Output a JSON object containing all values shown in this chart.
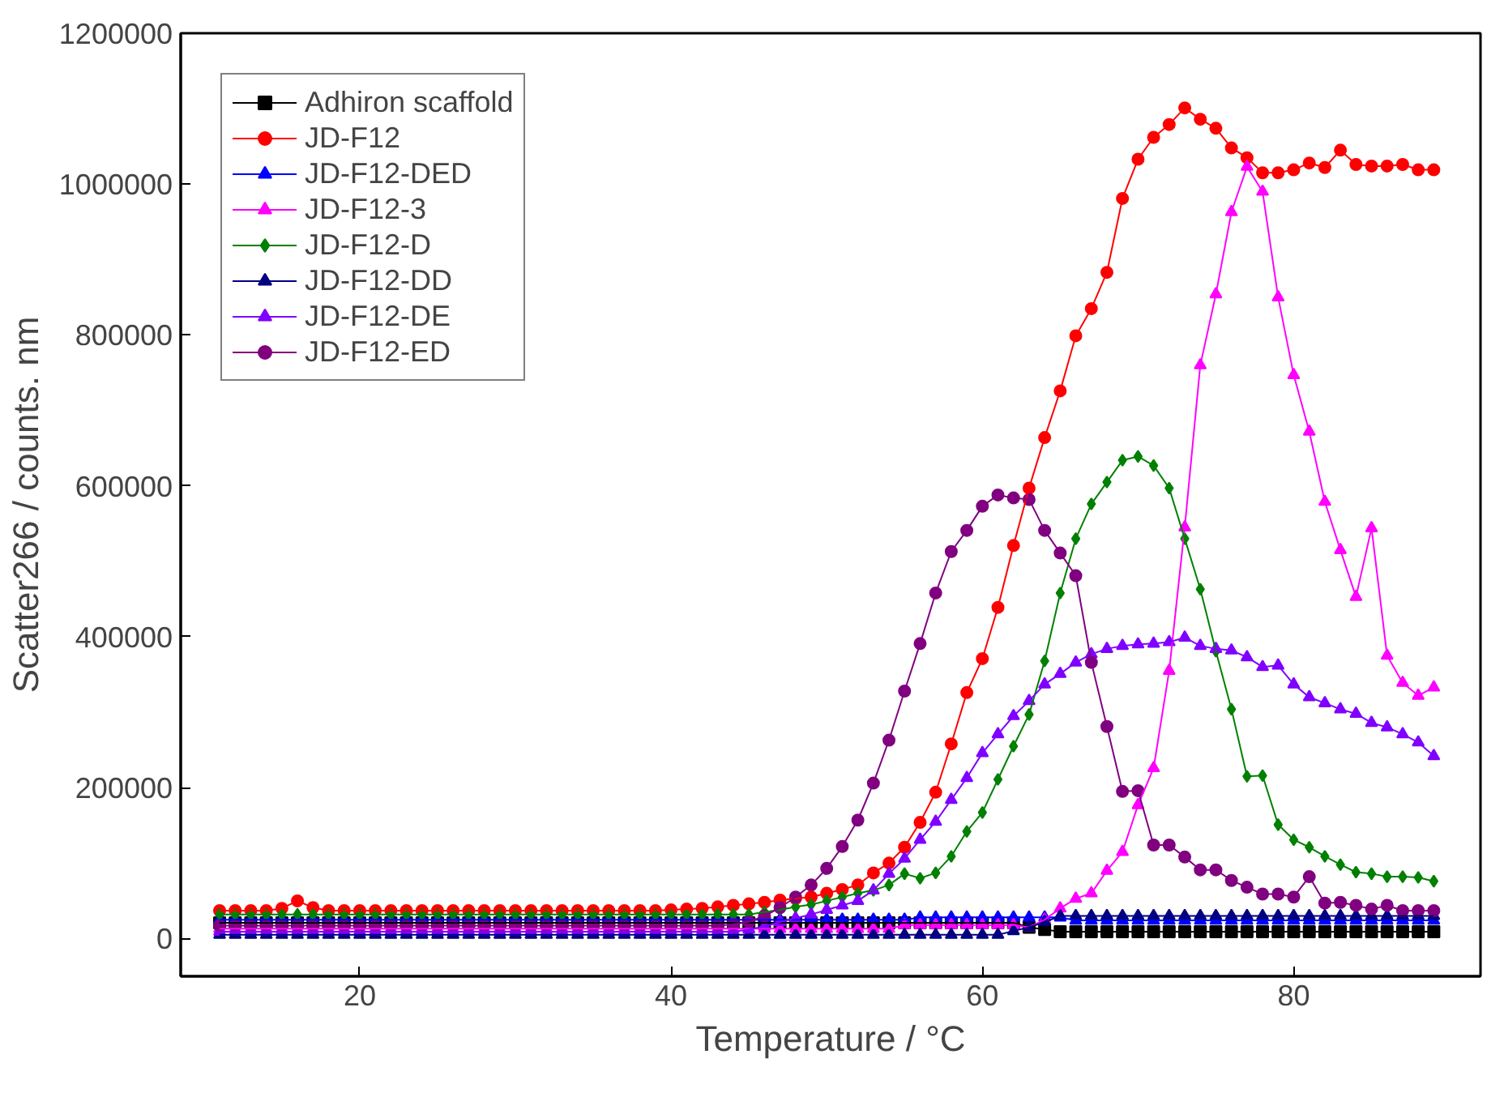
{
  "chart_data": {
    "type": "line",
    "xlabel": "Temperature / °C",
    "ylabel": "Scatter266 / counts. nm",
    "x": [
      11,
      12,
      13,
      14,
      15,
      16,
      17,
      18,
      19,
      20,
      21,
      22,
      23,
      24,
      25,
      26,
      27,
      28,
      29,
      30,
      31,
      32,
      33,
      34,
      35,
      36,
      37,
      38,
      39,
      40,
      41,
      42,
      43,
      44,
      45,
      46,
      47,
      48,
      49,
      50,
      51,
      52,
      53,
      54,
      55,
      56,
      57,
      58,
      59,
      60,
      61,
      62,
      63,
      64,
      65,
      66,
      67,
      68,
      69,
      70,
      71,
      72,
      73,
      74,
      75,
      76,
      77,
      78,
      79,
      80,
      81,
      82,
      83,
      84,
      85,
      86,
      87,
      88,
      89
    ],
    "xlim": [
      8.5,
      92
    ],
    "xticks": [
      20,
      40,
      60,
      80
    ],
    "ylim": [
      -50000,
      1200000
    ],
    "yticks": [
      0,
      200000,
      400000,
      600000,
      800000,
      1000000,
      1200000
    ],
    "grid": false,
    "legend": "top left",
    "line_style": "solid",
    "series": [
      {
        "name": "Adhiron scaffold",
        "color": "#000000",
        "marker": "square",
        "values": [
          21000,
          21000,
          21000,
          21000,
          21000,
          21000,
          21000,
          21000,
          21000,
          21000,
          21000,
          21000,
          21000,
          21000,
          21000,
          21000,
          21000,
          21000,
          21000,
          21000,
          21000,
          21000,
          21000,
          21000,
          21000,
          21000,
          21000,
          21000,
          21000,
          21000,
          21000,
          21000,
          21000,
          21000,
          21000,
          21000,
          21000,
          21000,
          21000,
          21000,
          21000,
          21000,
          21000,
          21000,
          21000,
          21000,
          21000,
          21000,
          21000,
          21000,
          21000,
          21000,
          15000,
          12000,
          9000,
          9000,
          9000,
          9000,
          9000,
          9000,
          9000,
          9000,
          9000,
          9000,
          9000,
          9000,
          9000,
          9000,
          9000,
          9000,
          9000,
          9000,
          9000,
          9000,
          9000,
          9000,
          9000,
          9000,
          9000
        ]
      },
      {
        "name": "JD-F12",
        "color": "#ff0000",
        "marker": "circle",
        "values": [
          37000,
          37000,
          37000,
          37000,
          40000,
          50000,
          41000,
          37000,
          37000,
          37000,
          37000,
          37000,
          37000,
          37000,
          37000,
          37000,
          37000,
          37000,
          37000,
          37000,
          37000,
          37000,
          37000,
          37000,
          37000,
          37000,
          37000,
          37000,
          37000,
          38000,
          39000,
          40000,
          42000,
          44000,
          46000,
          48000,
          51000,
          53000,
          55000,
          60000,
          65000,
          71000,
          87000,
          100000,
          121000,
          154000,
          194000,
          258000,
          326000,
          371000,
          439000,
          521000,
          597000,
          664000,
          726000,
          799000,
          835000,
          883000,
          981000,
          1033000,
          1062000,
          1079000,
          1101000,
          1086000,
          1074000,
          1048000,
          1035000,
          1015000,
          1015000,
          1019000,
          1028000,
          1022000,
          1045000,
          1026000,
          1024000,
          1024000,
          1026000,
          1019000,
          1019000
        ]
      },
      {
        "name": "JD-F12-DED",
        "color": "#0000ff",
        "marker": "triangle",
        "values": [
          25000,
          25000,
          25000,
          25000,
          25000,
          25000,
          25000,
          25000,
          25000,
          25000,
          25000,
          25000,
          25000,
          25000,
          25000,
          25000,
          25000,
          25000,
          25000,
          25000,
          25000,
          25000,
          25000,
          25000,
          25000,
          25000,
          25000,
          25000,
          25000,
          25000,
          25000,
          25000,
          25000,
          25000,
          25000,
          25000,
          25000,
          25000,
          25000,
          25000,
          25000,
          25000,
          25000,
          25000,
          25000,
          28000,
          28000,
          28000,
          28000,
          28000,
          28000,
          28000,
          28000,
          28000,
          28000,
          24000,
          24000,
          24000,
          24000,
          24000,
          24000,
          24000,
          24000,
          24000,
          24000,
          24000,
          24000,
          24000,
          24000,
          24000,
          24000,
          24000,
          24000,
          24000,
          24000,
          24000,
          24000,
          24000,
          24000
        ]
      },
      {
        "name": "JD-F12-3",
        "color": "#ff00ff",
        "marker": "triangle",
        "values": [
          13000,
          13000,
          13000,
          13000,
          13000,
          13000,
          13000,
          13000,
          13000,
          13000,
          13000,
          13000,
          13000,
          13000,
          13000,
          13000,
          13000,
          13000,
          13000,
          13000,
          13000,
          13000,
          13000,
          13000,
          13000,
          13000,
          13000,
          13000,
          13000,
          13000,
          13000,
          13000,
          13000,
          13000,
          13000,
          13000,
          13000,
          13000,
          13000,
          13000,
          13000,
          13000,
          13000,
          13000,
          18000,
          18000,
          18000,
          18000,
          18000,
          18000,
          18000,
          18000,
          15000,
          25000,
          40000,
          53000,
          60000,
          90000,
          115000,
          177000,
          226000,
          355000,
          545000,
          760000,
          854000,
          963000,
          1023000,
          990000,
          850000,
          747000,
          672000,
          579000,
          515000,
          453000,
          544000,
          375000,
          339000,
          322000,
          333000
        ]
      },
      {
        "name": "JD-F12-D",
        "color": "#008000",
        "marker": "diamond",
        "values": [
          32000,
          32000,
          32000,
          32000,
          32000,
          32000,
          32000,
          32000,
          32000,
          32000,
          32000,
          32000,
          32000,
          32000,
          32000,
          32000,
          32000,
          32000,
          32000,
          32000,
          32000,
          32000,
          32000,
          32000,
          32000,
          32000,
          32000,
          32000,
          32000,
          32000,
          32000,
          32000,
          32000,
          32000,
          32000,
          35000,
          38000,
          42000,
          45000,
          50000,
          55000,
          60000,
          64000,
          71000,
          86000,
          80000,
          87000,
          109000,
          142000,
          167000,
          211000,
          255000,
          297000,
          368000,
          458000,
          530000,
          576000,
          605000,
          634000,
          639000,
          627000,
          597000,
          530000,
          463000,
          381000,
          304000,
          215000,
          216000,
          151000,
          131000,
          121000,
          109000,
          98000,
          88000,
          86000,
          82000,
          82000,
          81000,
          76000
        ]
      },
      {
        "name": "JD-F12-DD",
        "color": "#000080",
        "marker": "triangle",
        "values": [
          5000,
          5000,
          5000,
          5000,
          5000,
          5000,
          5000,
          5000,
          5000,
          5000,
          5000,
          5000,
          5000,
          5000,
          5000,
          5000,
          5000,
          5000,
          5000,
          5000,
          5000,
          5000,
          5000,
          5000,
          5000,
          5000,
          5000,
          5000,
          5000,
          5000,
          5000,
          5000,
          5000,
          5000,
          5000,
          5000,
          5000,
          5000,
          5000,
          5000,
          5000,
          5000,
          5000,
          5000,
          5000,
          5000,
          5000,
          5000,
          5000,
          5000,
          5000,
          10000,
          15000,
          22000,
          30000,
          30000,
          30000,
          30000,
          30000,
          30000,
          30000,
          30000,
          30000,
          30000,
          30000,
          30000,
          30000,
          30000,
          30000,
          30000,
          30000,
          30000,
          30000,
          30000,
          30000,
          30000,
          30000,
          30000,
          30000
        ]
      },
      {
        "name": "JD-F12-DE",
        "color": "#8000ff",
        "marker": "triangle",
        "values": [
          9000,
          9000,
          9000,
          9000,
          9000,
          9000,
          9000,
          9000,
          9000,
          9000,
          9000,
          9000,
          9000,
          9000,
          9000,
          9000,
          9000,
          9000,
          9000,
          9000,
          9000,
          9000,
          9000,
          9000,
          9000,
          9000,
          9000,
          9000,
          9000,
          9000,
          9000,
          9000,
          9000,
          9000,
          12000,
          16000,
          22000,
          27000,
          32000,
          38000,
          44000,
          50000,
          64000,
          86000,
          106000,
          131000,
          155000,
          184000,
          213000,
          246000,
          271000,
          295000,
          315000,
          337000,
          351000,
          366000,
          377000,
          384000,
          388000,
          390000,
          391000,
          393000,
          399000,
          388000,
          384000,
          382000,
          373000,
          360000,
          362000,
          337000,
          320000,
          312000,
          304000,
          298000,
          286000,
          280000,
          271000,
          260000,
          242000
        ]
      },
      {
        "name": "JD-F12-ED",
        "color": "#800080",
        "marker": "circle",
        "values": [
          17000,
          17000,
          17000,
          17000,
          17000,
          17000,
          17000,
          17000,
          17000,
          17000,
          17000,
          17000,
          17000,
          17000,
          17000,
          17000,
          17000,
          17000,
          17000,
          17000,
          17000,
          17000,
          17000,
          17000,
          17000,
          17000,
          17000,
          17000,
          17000,
          17000,
          17000,
          17000,
          17000,
          19000,
          22000,
          30000,
          41000,
          55000,
          71000,
          93000,
          122000,
          157000,
          206000,
          263000,
          328000,
          391000,
          458000,
          513000,
          541000,
          573000,
          588000,
          584000,
          582000,
          541000,
          511000,
          481000,
          366000,
          281000,
          195000,
          196000,
          124000,
          124000,
          108000,
          91000,
          91000,
          77000,
          68000,
          59000,
          59000,
          55000,
          82000,
          47000,
          48000,
          44000,
          39000,
          44000,
          37000,
          37000,
          37000
        ]
      }
    ]
  }
}
